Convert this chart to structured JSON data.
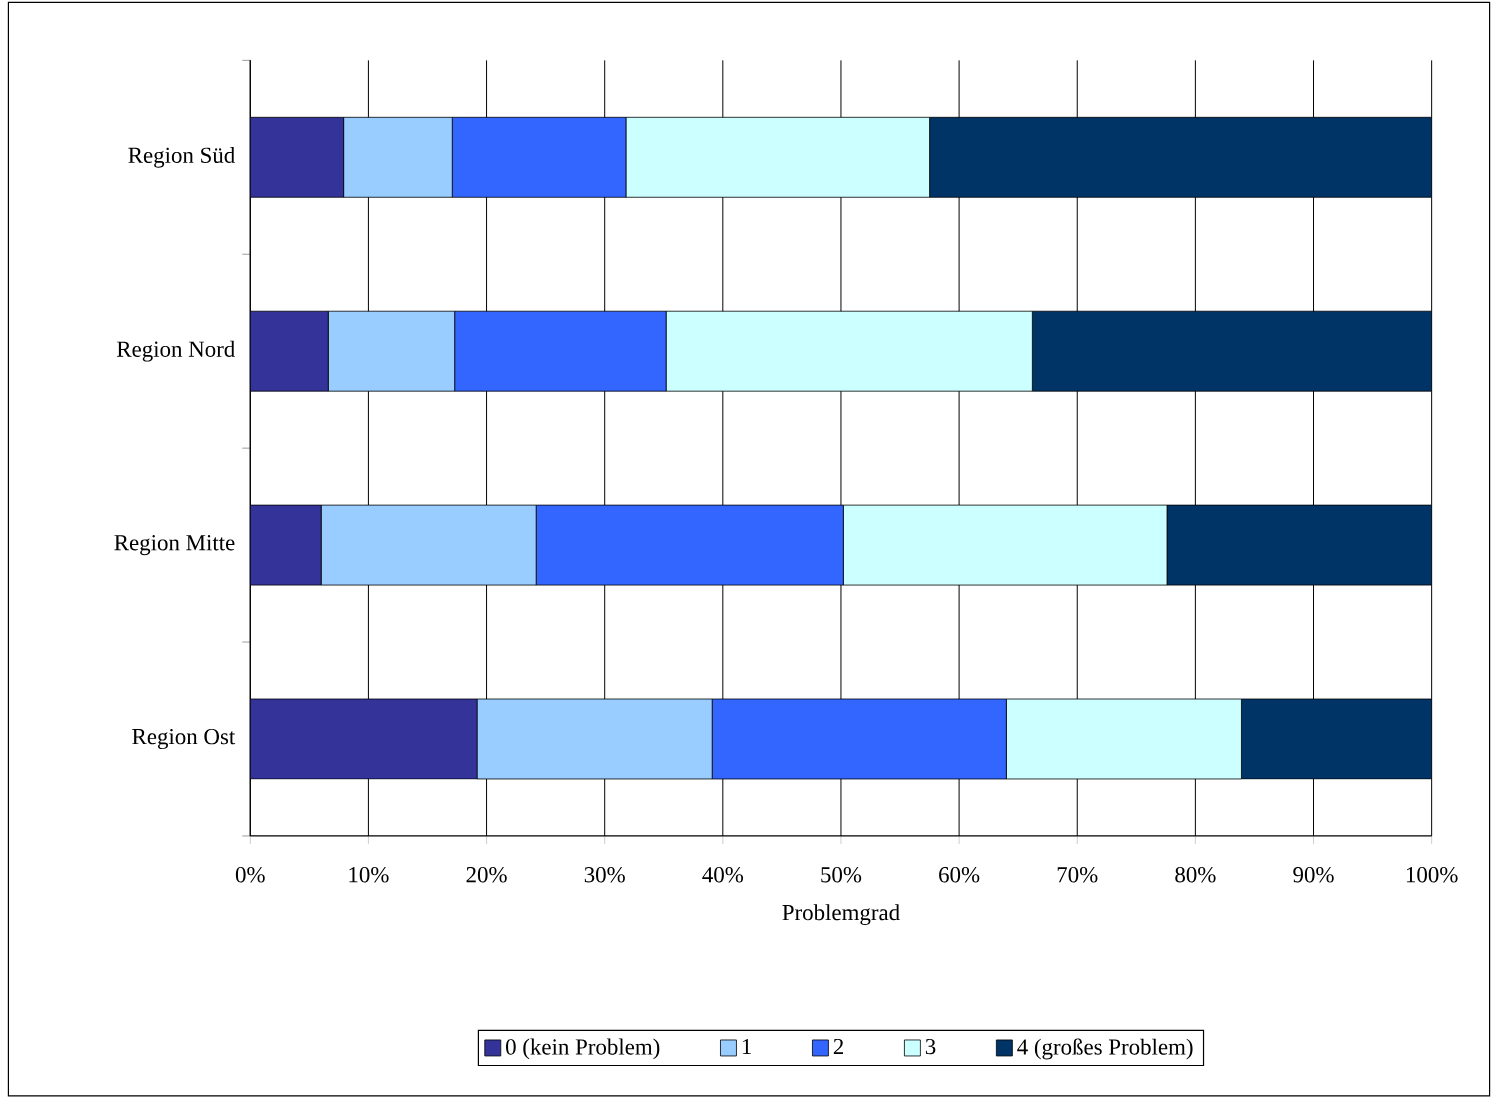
{
  "chart_data": {
    "type": "bar",
    "orientation": "horizontal",
    "stacked": true,
    "xlabel": "Problemgrad",
    "categories": [
      "Region Süd",
      "Region Nord",
      "Region Mitte",
      "Region Ost"
    ],
    "series": [
      {
        "name": "0 (kein Problem)",
        "color": "#333399",
        "values": [
          7.9,
          6.6,
          6.0,
          19.2
        ]
      },
      {
        "name": "1",
        "color": "#99ccff",
        "values": [
          9.2,
          10.7,
          18.2,
          19.9
        ]
      },
      {
        "name": "2",
        "color": "#3366ff",
        "values": [
          14.7,
          17.9,
          26.0,
          24.9
        ]
      },
      {
        "name": "3",
        "color": "#ccffff",
        "values": [
          25.7,
          31.0,
          27.4,
          19.9
        ]
      },
      {
        "name": "4 (großes Problem)",
        "color": "#003366",
        "values": [
          42.5,
          33.8,
          22.4,
          16.1
        ]
      }
    ],
    "xlim": [
      0,
      100
    ],
    "xticks": [
      {
        "value": 0,
        "label": "0%"
      },
      {
        "value": 10,
        "label": "10%"
      },
      {
        "value": 20,
        "label": "20%"
      },
      {
        "value": 30,
        "label": "30%"
      },
      {
        "value": 40,
        "label": "40%"
      },
      {
        "value": 50,
        "label": "50%"
      },
      {
        "value": 60,
        "label": "60%"
      },
      {
        "value": 70,
        "label": "70%"
      },
      {
        "value": 80,
        "label": "80%"
      },
      {
        "value": 90,
        "label": "90%"
      },
      {
        "value": 100,
        "label": "100%"
      }
    ],
    "grid": "x",
    "legend": "bottom"
  }
}
